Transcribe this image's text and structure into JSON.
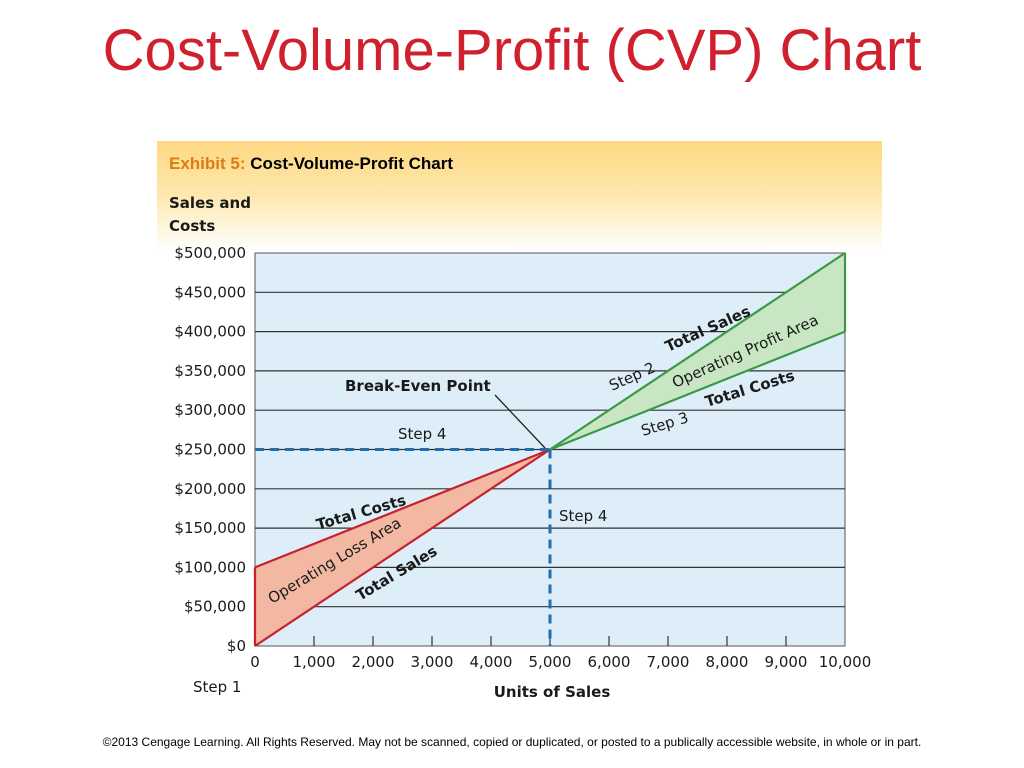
{
  "slide": {
    "title": "Cost-Volume-Profit (CVP) Chart",
    "footer": "©2013 Cengage Learning. All Rights Reserved. May not be scanned, copied or duplicated, or posted to a publically accessible website, in whole or in part."
  },
  "exhibit": {
    "label": "Exhibit 5:",
    "title": "Cost-Volume-Profit Chart"
  },
  "colors": {
    "title": "#d0202e",
    "exhibit_label": "#e07b12",
    "plot_bg": "#ddeef9",
    "loss_line": "#c8202e",
    "loss_fill": "#f2b8a2",
    "profit_line": "#3a9a48",
    "profit_fill": "#c9e6c4",
    "dashed": "#1f6fb0"
  },
  "chart_data": {
    "type": "line",
    "ylabel_lines": [
      "Sales and",
      "Costs"
    ],
    "xlabel": "Units of Sales",
    "xlim": [
      0,
      10000
    ],
    "ylim": [
      0,
      500000
    ],
    "x_ticks": [
      0,
      1000,
      2000,
      3000,
      4000,
      5000,
      6000,
      7000,
      8000,
      9000,
      10000
    ],
    "x_tick_labels": [
      "0",
      "1,000",
      "2,000",
      "3,000",
      "4,000",
      "5,000",
      "6,000",
      "7,000",
      "8,000",
      "9,000",
      "10,000"
    ],
    "y_ticks": [
      0,
      50000,
      100000,
      150000,
      200000,
      250000,
      300000,
      350000,
      400000,
      450000,
      500000
    ],
    "y_tick_labels": [
      "$0",
      "$50,000",
      "$100,000",
      "$150,000",
      "$200,000",
      "$250,000",
      "$300,000",
      "$350,000",
      "$400,000",
      "$450,000",
      "$500,000"
    ],
    "grid": "horizontal",
    "series": [
      {
        "name": "Total Sales",
        "x": [
          0,
          10000
        ],
        "y": [
          0,
          500000
        ]
      },
      {
        "name": "Total Costs",
        "x": [
          0,
          10000
        ],
        "y": [
          100000,
          400000
        ]
      }
    ],
    "break_even": {
      "label": "Break-Even Point",
      "x": 5000,
      "y": 250000
    },
    "annotations": {
      "step1": "Step 1",
      "step2": "Step 2",
      "step3": "Step 3",
      "step4": "Step 4",
      "total_sales": "Total Sales",
      "total_costs": "Total Costs",
      "operating_profit_area": "Operating Profit Area",
      "operating_loss_area": "Operating Loss Area"
    }
  }
}
